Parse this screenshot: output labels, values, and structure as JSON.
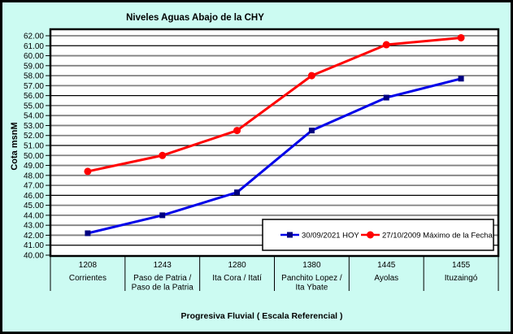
{
  "page": {
    "background": "#CCFBF2",
    "border_color": "#000000"
  },
  "chart_data": {
    "type": "line",
    "title": "Niveles Aguas Abajo de la CHY",
    "xlabel": "Progresiva Fluvial ( Escala Referencial )",
    "ylabel": "Cota msnM",
    "plot_background": "#FFFFFF",
    "y_axis": {
      "min": 40,
      "max": 62,
      "step": 1,
      "tick_labels": [
        "62.00",
        "61.00",
        "60.00",
        "59.00",
        "58.00",
        "57.00",
        "56.00",
        "55.00",
        "54.00",
        "53.00",
        "52.00",
        "51.00",
        "50.00",
        "49.00",
        "48.00",
        "47.00",
        "46.00",
        "45.00",
        "44.00",
        "43.00",
        "42.00",
        "41.00",
        "40.00"
      ]
    },
    "grid": {
      "minor_color": "#808080",
      "emphasis_color": "#000000",
      "emphasis_values": [
        41,
        46,
        51,
        56,
        61
      ]
    },
    "categories": [
      {
        "km": "1208",
        "name_lines": [
          "Corrientes"
        ]
      },
      {
        "km": "1243",
        "name_lines": [
          "Paso de Patria /",
          "Paso de la Patria"
        ]
      },
      {
        "km": "1280",
        "name_lines": [
          "Ita Cora / Itatí"
        ]
      },
      {
        "km": "1380",
        "name_lines": [
          "Panchito Lopez /",
          "Ita Ybate"
        ]
      },
      {
        "km": "1445",
        "name_lines": [
          "Ayolas"
        ]
      },
      {
        "km": "1455",
        "name_lines": [
          "Ituzaingó"
        ]
      }
    ],
    "series": [
      {
        "name": "30/09/2021 HOY",
        "color": "#0000E8",
        "marker": "square",
        "marker_color": "#000080",
        "values": [
          42.2,
          44.0,
          46.3,
          52.5,
          55.8,
          57.7
        ]
      },
      {
        "name": "27/10/2009 Máximo de la Fecha",
        "color": "#FF0000",
        "marker": "circle",
        "marker_color": "#FF0000",
        "values": [
          48.4,
          50.0,
          52.5,
          58.0,
          61.1,
          61.8
        ]
      }
    ],
    "legend": {
      "position": "inside-bottom-right",
      "background": "#FFFFFF",
      "border": "#000000"
    }
  }
}
